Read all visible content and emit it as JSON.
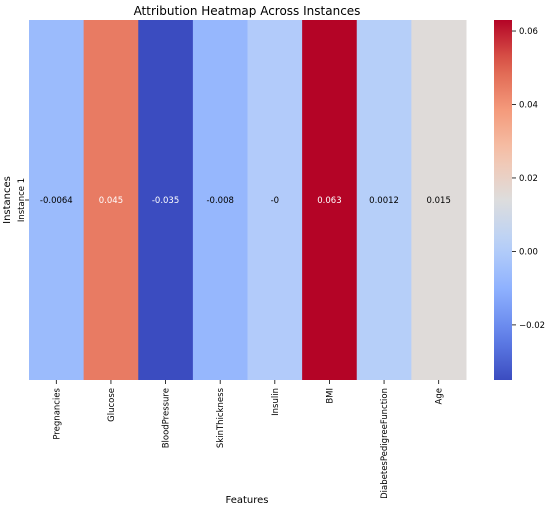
{
  "chart_data": {
    "type": "heatmap",
    "title": "Attribution Heatmap Across Instances",
    "xlabel": "Features",
    "ylabel": "Instances",
    "rows": [
      "Instance 1"
    ],
    "columns": [
      "Pregnancies",
      "Glucose",
      "BloodPressure",
      "SkinThickness",
      "Insulin",
      "BMI",
      "DiabetesPedigreeFunction",
      "Age"
    ],
    "values": [
      [
        -0.0064,
        0.045,
        -0.035,
        -0.008,
        0,
        0.063,
        0.0012,
        0.015
      ]
    ],
    "cell_labels": [
      [
        "-0.0064",
        "0.045",
        "-0.035",
        "-0.008",
        "-0",
        "0.063",
        "0.0012",
        "0.015"
      ]
    ],
    "colormap": "coolwarm",
    "colorbar": {
      "vmin": -0.035,
      "vmax": 0.063,
      "ticks": [
        -0.02,
        0.0,
        0.02,
        0.04,
        0.06
      ],
      "tick_labels": [
        "−0.02",
        "0.00",
        "0.02",
        "0.04",
        "0.06"
      ]
    }
  }
}
